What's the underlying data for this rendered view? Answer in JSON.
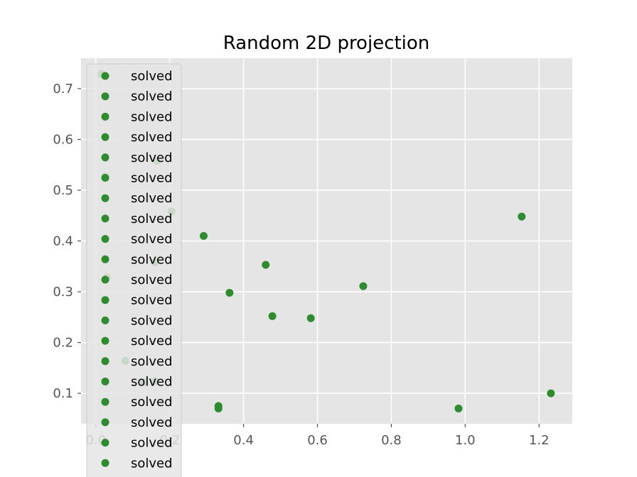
{
  "chart_data": {
    "type": "scatter",
    "title": "Random 2D projection",
    "xlabel": "",
    "ylabel": "",
    "xlim": [
      -0.04,
      1.29
    ],
    "ylim": [
      0.04,
      0.76
    ],
    "x_ticks": [
      0.0,
      0.2,
      0.4,
      0.6,
      0.8,
      1.0,
      1.2
    ],
    "x_tick_labels": [
      "0.0",
      "0.2",
      "0.4",
      "0.6",
      "0.8",
      "1.0",
      "1.2"
    ],
    "y_ticks": [
      0.1,
      0.2,
      0.3,
      0.4,
      0.5,
      0.6,
      0.7
    ],
    "y_tick_labels": [
      "0.1",
      "0.2",
      "0.3",
      "0.4",
      "0.5",
      "0.6",
      "0.7"
    ],
    "grid": true,
    "background": "#e5e5e5",
    "point_color": "#2e8b2e",
    "legend_position": "upper-left",
    "legend_entries": [
      "solved",
      "solved",
      "solved",
      "solved",
      "solved",
      "solved",
      "solved",
      "solved",
      "solved",
      "solved",
      "solved",
      "solved",
      "solved",
      "solved",
      "solved",
      "solved",
      "solved",
      "solved",
      "solved",
      "solved"
    ],
    "series": [
      {
        "name": "solved",
        "points": [
          [
            0.015,
            0.729
          ],
          [
            0.165,
            0.558
          ],
          [
            0.025,
            0.527
          ],
          [
            0.205,
            0.458
          ],
          [
            0.292,
            0.41
          ],
          [
            0.46,
            0.353
          ],
          [
            0.16,
            0.358
          ],
          [
            0.03,
            0.328
          ],
          [
            0.362,
            0.298
          ],
          [
            0.724,
            0.311
          ],
          [
            0.478,
            0.252
          ],
          [
            0.582,
            0.248
          ],
          [
            1.153,
            0.448
          ],
          [
            0.08,
            0.164
          ],
          [
            0.16,
            0.124
          ],
          [
            0.332,
            0.075
          ],
          [
            0.332,
            0.07
          ],
          [
            0.982,
            0.07
          ],
          [
            1.232,
            0.1
          ],
          [
            0.13,
            0.122
          ]
        ]
      }
    ]
  }
}
